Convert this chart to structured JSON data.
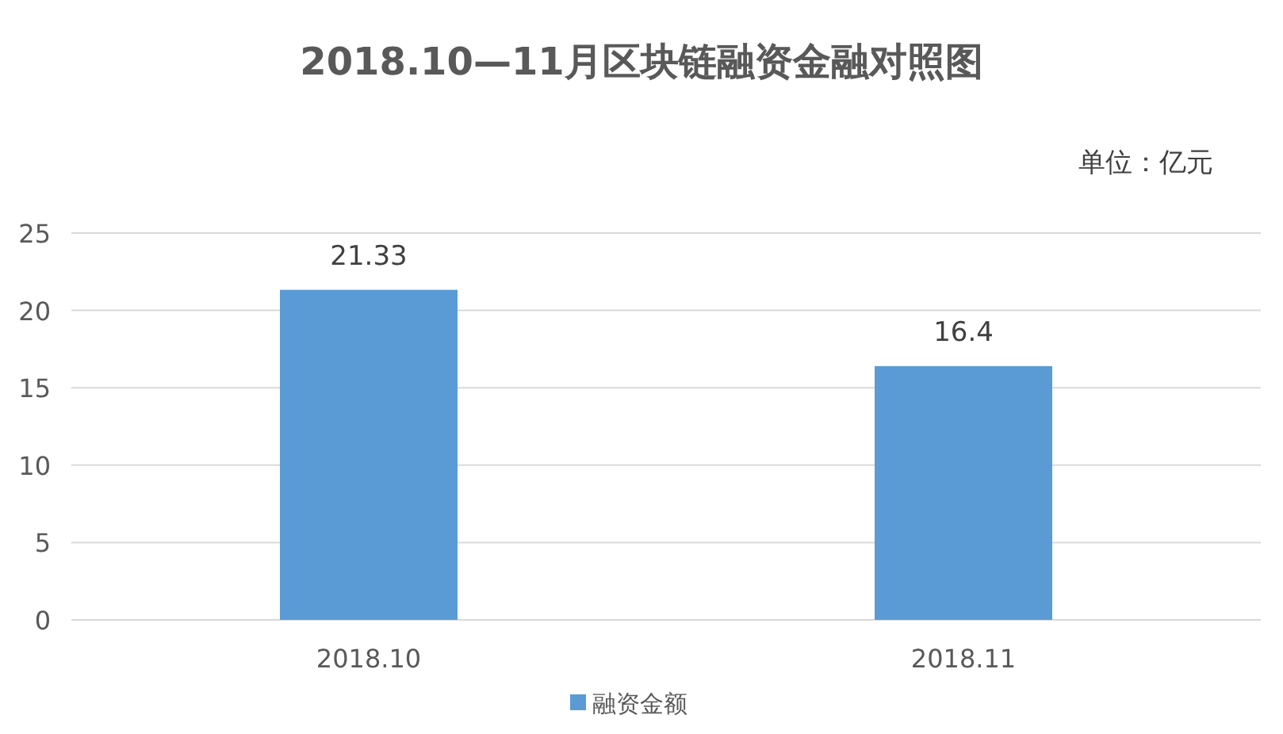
{
  "chart_data": {
    "type": "bar",
    "title": "2018.10—11月区块链融资金融对照图",
    "annotations": [
      "单位：亿元"
    ],
    "categories": [
      "2018.10",
      "2018.11"
    ],
    "series": [
      {
        "name": "融资金额",
        "color": "#5b9bd5",
        "values": [
          21.33,
          16.4
        ]
      }
    ],
    "ylim": [
      0,
      25
    ],
    "yticks": [
      0,
      5,
      10,
      15,
      20,
      25
    ],
    "grid": "y",
    "data_labels": true,
    "legend": "bottom"
  }
}
